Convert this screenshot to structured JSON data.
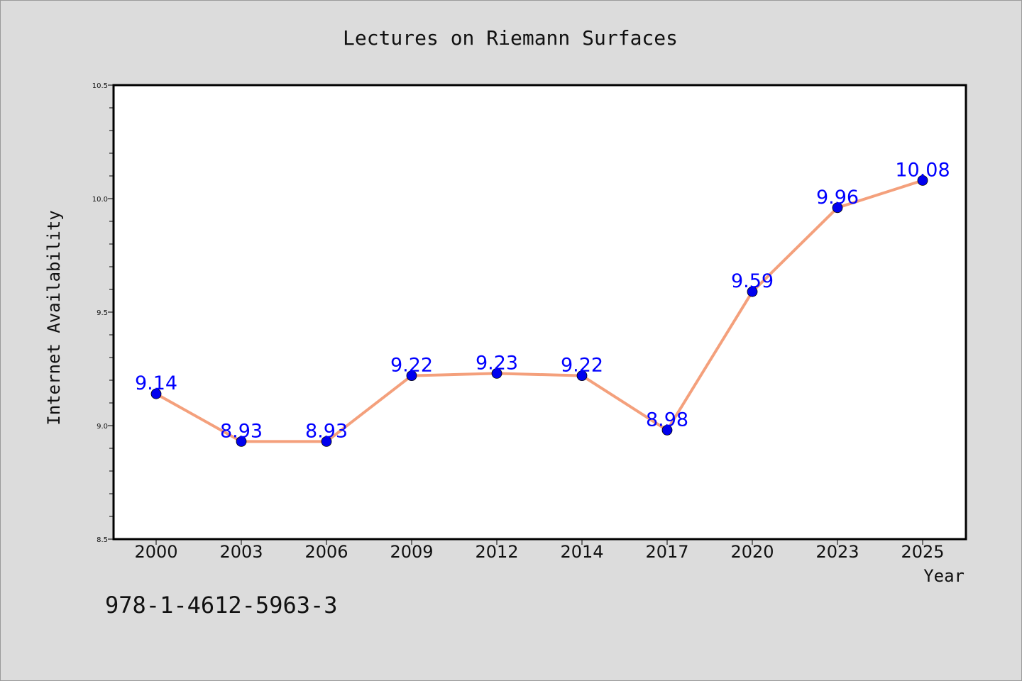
{
  "chart_data": {
    "type": "line",
    "title": "Lectures on Riemann Surfaces",
    "xlabel": "Year",
    "ylabel": "Internet Availability",
    "categories": [
      "2000",
      "2003",
      "2006",
      "2009",
      "2012",
      "2014",
      "2017",
      "2020",
      "2023",
      "2025"
    ],
    "values": [
      9.14,
      8.93,
      8.93,
      9.22,
      9.23,
      9.22,
      8.98,
      9.59,
      9.96,
      10.08
    ],
    "data_labels": [
      "9.14",
      "8.93",
      "8.93",
      "9.22",
      "9.23",
      "9.22",
      "8.98",
      "9.59",
      "9.96",
      "10.08"
    ],
    "ylim": [
      8.5,
      10.5
    ],
    "yticks": [
      "8.5",
      "9.0",
      "9.5",
      "10.0",
      "10.5"
    ],
    "grid": false,
    "line_color": "#f4a07c",
    "marker_color": "#0000ee",
    "label_color": "#0000ff",
    "background": "#dcdcdc",
    "plot_background": "#ffffff"
  },
  "footer": {
    "isbn": "978-1-4612-5963-3"
  }
}
